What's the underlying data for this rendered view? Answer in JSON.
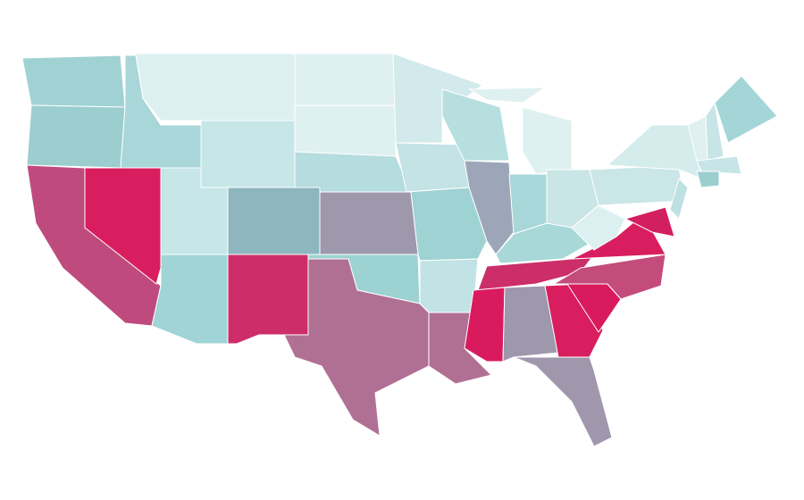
{
  "map": {
    "region_colors": [
      "#a0d2d4",
      "#9ccdcf",
      "#bf4b7e",
      "#d81e5e",
      "#a9d6d8",
      "#ddf0f1",
      "#c6e6e8",
      "#c6e6e8",
      "#a0d4d6",
      "#8db6bf",
      "#cd2e6a",
      "#dff0f1",
      "#dff0f1",
      "#b5dcdf",
      "#9e98ad",
      "#9dd2d2",
      "#b07094",
      "#d2eaeb",
      "#c3e3e5",
      "#9fd3d3",
      "#c2e3e5",
      "#b07094",
      "#b7dfe0",
      "#9ca6b8",
      "#dff0f1",
      "#dff0f1",
      "#a7d7d8",
      "#c9e5e6",
      "#a8d8d8",
      "#cb2e68",
      "#d91b5e",
      "#9e98ad",
      "#d81e5e",
      "#a097ad",
      "#d91b5e",
      "#c34c7c",
      "#d81e5e",
      "#ddf0f1",
      "#cae6e7",
      "#d4ecec",
      "#d21f5f",
      "#bfe0e2",
      "#e0f0f0",
      "#c7e5e6",
      "#a4d6d8",
      "#c7e5e6",
      "#9bcfcf"
    ]
  }
}
